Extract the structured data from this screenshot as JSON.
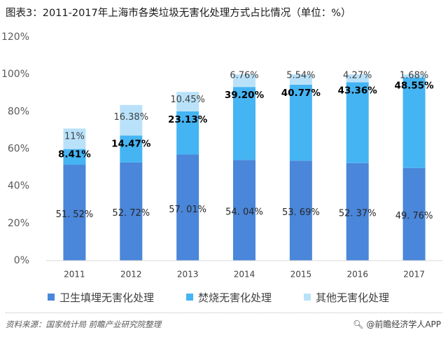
{
  "title": "图表3：2011-2017年上海市各类垃圾无害化处理方式占比情况（单位：%）",
  "chart_data": {
    "type": "bar",
    "stacked": true,
    "categories": [
      "2011",
      "2012",
      "2013",
      "2014",
      "2015",
      "2016",
      "2017"
    ],
    "ylim": [
      0,
      120
    ],
    "yticks": [
      "0%",
      "20%",
      "40%",
      "60%",
      "80%",
      "100%",
      "120%"
    ],
    "grid": false,
    "legend_position": "bottom",
    "series": [
      {
        "name": "卫生填埋无害化处理",
        "color": "#4a86d9",
        "values": [
          51.52,
          52.72,
          57.01,
          54.04,
          53.69,
          52.37,
          49.76
        ],
        "labels": [
          "51. 52%",
          "52. 72%",
          "57. 01%",
          "54. 04%",
          "53. 69%",
          "52. 37%",
          "49. 76%"
        ]
      },
      {
        "name": "焚烧无害化处理",
        "color": "#45b4f3",
        "values": [
          8.41,
          14.47,
          23.13,
          39.2,
          40.77,
          43.36,
          48.55
        ],
        "labels": [
          "8.41%",
          "14.47%",
          "23.13%",
          "39.20%",
          "40.77%",
          "43.36%",
          "48.55%"
        ]
      },
      {
        "name": "其他无害化处理",
        "color": "#b9e2fa",
        "values": [
          11,
          16.38,
          10.45,
          6.76,
          5.54,
          4.27,
          1.68
        ],
        "labels": [
          "11%",
          "16.38%",
          "10.45%",
          "6.76%",
          "5.54%",
          "4.27%",
          "1.68%"
        ]
      }
    ]
  },
  "footer": {
    "source": "资料来源：国家统计局 前瞻产业研究院整理",
    "brand_icon": "search-icon",
    "brand": "@前瞻经济学人APP"
  }
}
